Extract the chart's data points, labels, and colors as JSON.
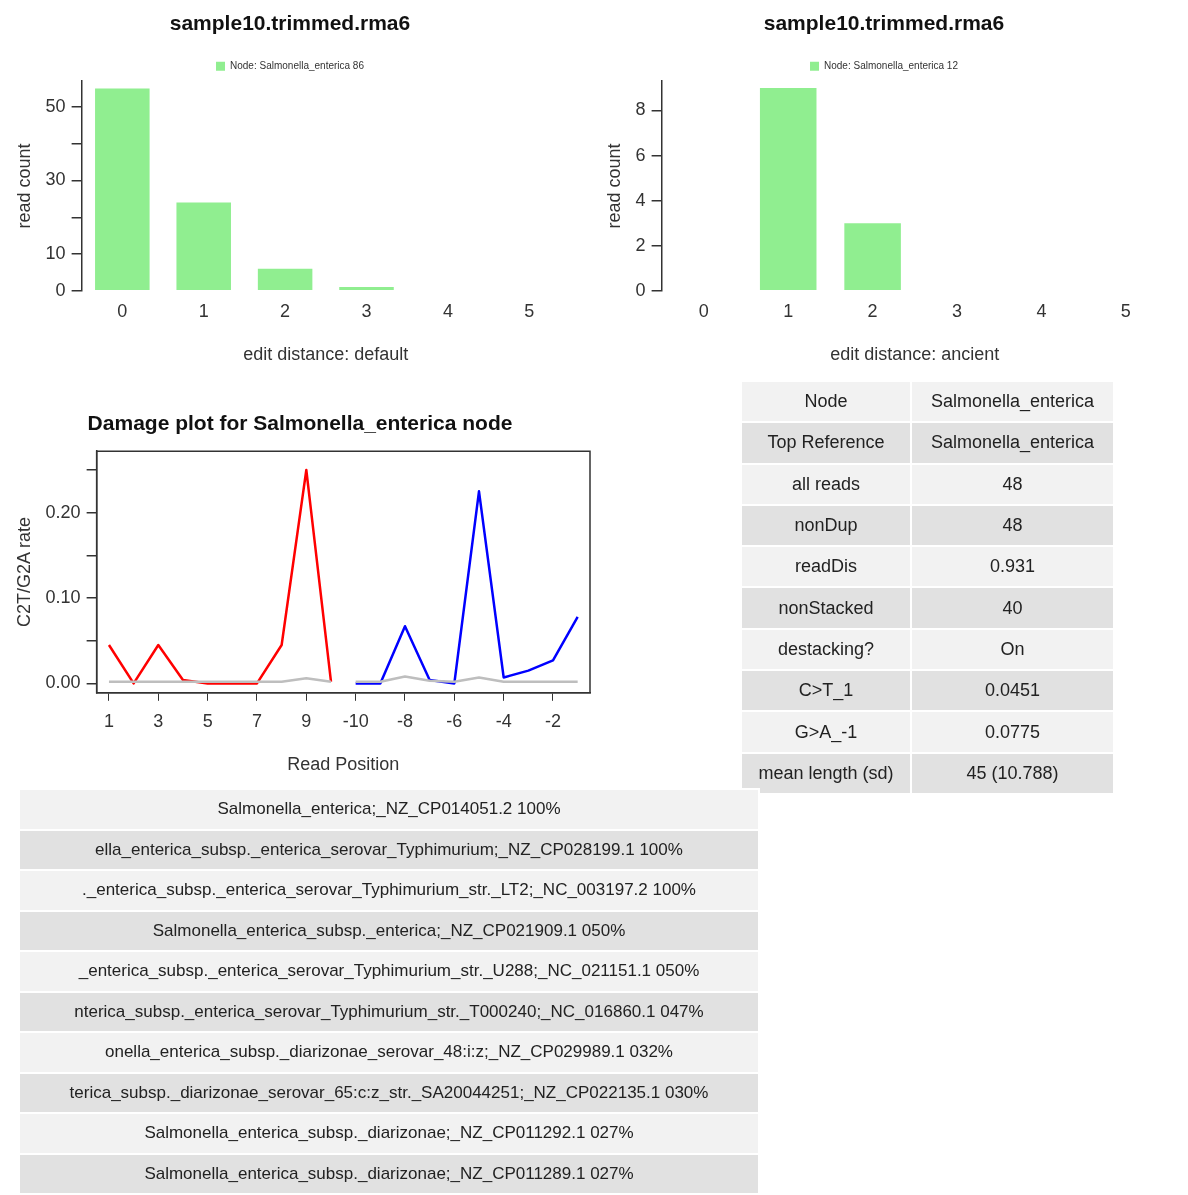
{
  "chart_data": [
    {
      "type": "bar",
      "title": "sample10.trimmed.rma6",
      "xlabel": "edit distance: default",
      "ylabel": "read count",
      "categories": [
        "0",
        "1",
        "2",
        "3",
        "4",
        "5"
      ],
      "legend": "top",
      "ylim": [
        0,
        57
      ],
      "yticks": [
        0,
        10,
        {
          "value": 20,
          "label": null
        },
        30,
        {
          "value": 40,
          "label": null
        },
        50
      ],
      "series": [
        {
          "name": "Node: Salmonella_enterica 86",
          "color": "#90ee90",
          "values": [
            55,
            24,
            6,
            1,
            0,
            0
          ]
        }
      ]
    },
    {
      "type": "bar",
      "title": "sample10.trimmed.rma6",
      "xlabel": "edit distance: ancient",
      "ylabel": "read count",
      "categories": [
        "0",
        "1",
        "2",
        "3",
        "4",
        "5"
      ],
      "legend": "top",
      "ylim": [
        0,
        9.3
      ],
      "yticks": [
        0,
        2,
        4,
        6,
        8
      ],
      "series": [
        {
          "name": "Node: Salmonella_enterica 12",
          "color": "#90ee90",
          "values": [
            0,
            9,
            3,
            0,
            0,
            0
          ]
        }
      ]
    },
    {
      "type": "line",
      "title": "Damage plot for Salmonella_enterica node",
      "xlabel": "Read Position",
      "ylabel": "C2T/G2A rate",
      "categories": [
        "1",
        null,
        "3",
        null,
        "5",
        null,
        "7",
        null,
        "9",
        null,
        "-10",
        null,
        "-8",
        null,
        "-6",
        null,
        "-4",
        null,
        "-2",
        null
      ],
      "ylim": [
        -0.011,
        0.272
      ],
      "yticks": [
        {
          "value": 0,
          "label": "0.00"
        },
        {
          "value": 0.05,
          "label": null
        },
        {
          "value": 0.1,
          "label": "0.10"
        },
        {
          "value": 0.15,
          "label": null
        },
        {
          "value": 0.2,
          "label": "0.20"
        },
        {
          "value": 0.25,
          "label": null
        }
      ],
      "series": [
        {
          "color": "#bebebe",
          "values": [
            0.002,
            0.002,
            0.002,
            0.002,
            0.002,
            0.002,
            0.002,
            0.002,
            0.006,
            0.002,
            null,
            null,
            null,
            null,
            null,
            null,
            null,
            null,
            null,
            null
          ]
        },
        {
          "color": "#bebebe",
          "values": [
            null,
            null,
            null,
            null,
            null,
            null,
            null,
            null,
            null,
            null,
            0.002,
            0.002,
            0.008,
            0.003,
            0.002,
            0.007,
            0.002,
            0.002,
            0.002,
            0.002
          ]
        },
        {
          "color": "#ff0000",
          "values": [
            0.045,
            0.0,
            0.045,
            0.004,
            0.0,
            0.0,
            0.0,
            0.045,
            0.25,
            0.002,
            null,
            null,
            null,
            null,
            null,
            null,
            null,
            null,
            null,
            null
          ]
        },
        {
          "color": "#0000ff",
          "values": [
            null,
            null,
            null,
            null,
            null,
            null,
            null,
            null,
            null,
            null,
            0.0,
            0.0,
            0.067,
            0.004,
            0.0,
            0.225,
            0.007,
            0.015,
            0.027,
            0.078
          ]
        }
      ]
    },
    {
      "type": "other",
      "y_categories": [
        "Node",
        "Top Reference",
        "all reads",
        "nonDup",
        "readDis",
        "nonStacked",
        "destacking?",
        "C>T_1",
        "G>A_-1",
        "mean length (sd)"
      ],
      "cell_labels": [
        [
          "Salmonella_enterica"
        ],
        [
          "Salmonella_enterica"
        ],
        [
          "48"
        ],
        [
          "48"
        ],
        [
          "0.931"
        ],
        [
          "40"
        ],
        [
          "On"
        ],
        [
          "0.0451"
        ],
        [
          "0.0775"
        ],
        [
          "45 (10.788)"
        ]
      ]
    },
    {
      "type": "other",
      "annotations": [
        "Salmonella_enterica;_NZ_CP014051.2 100%",
        "ella_enterica_subsp._enterica_serovar_Typhimurium;_NZ_CP028199.1 100%",
        "._enterica_subsp._enterica_serovar_Typhimurium_str._LT2;_NC_003197.2 100%",
        "Salmonella_enterica_subsp._enterica;_NZ_CP021909.1 050%",
        "_enterica_subsp._enterica_serovar_Typhimurium_str._U288;_NC_021151.1 050%",
        "nterica_subsp._enterica_serovar_Typhimurium_str._T000240;_NC_016860.1 047%",
        "onella_enterica_subsp._diarizonae_serovar_48:i:z;_NZ_CP029989.1 032%",
        "terica_subsp._diarizonae_serovar_65:c:z_str._SA20044251;_NZ_CP022135.1 030%",
        "Salmonella_enterica_subsp._diarizonae;_NZ_CP011292.1 027%",
        "Salmonella_enterica_subsp._diarizonae;_NZ_CP011289.1 027%"
      ]
    }
  ]
}
